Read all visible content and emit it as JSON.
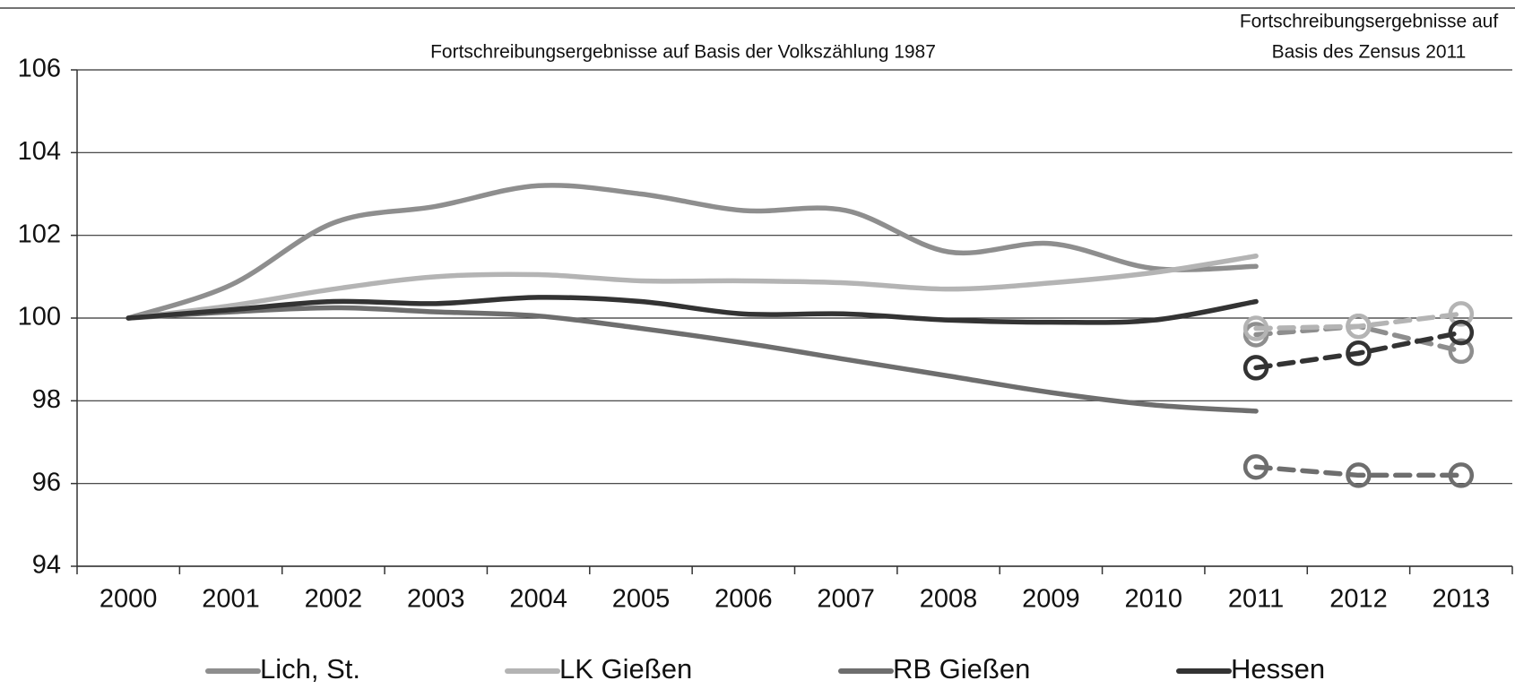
{
  "chart_data": {
    "type": "line",
    "annotations": [
      "Fortschreibungsergebnisse auf Basis der Volkszählung 1987",
      "Fortschreibungsergebnisse auf",
      "Basis des Zensus 2011"
    ],
    "categories": [
      "2000",
      "2001",
      "2002",
      "2003",
      "2004",
      "2005",
      "2006",
      "2007",
      "2008",
      "2009",
      "2010",
      "2011",
      "2012",
      "2013"
    ],
    "series": [
      {
        "name": "Lich, St.",
        "color": "#8e8e8e",
        "values": [
          100,
          100.8,
          102.3,
          102.7,
          103.2,
          103.0,
          102.6,
          102.6,
          101.6,
          101.8,
          101.2,
          101.25,
          null,
          null
        ],
        "zensus_values": [
          null,
          null,
          null,
          null,
          null,
          null,
          null,
          null,
          null,
          null,
          null,
          99.6,
          99.8,
          99.2
        ]
      },
      {
        "name": "LK Gießen",
        "color": "#b4b4b4",
        "values": [
          100,
          100.3,
          100.7,
          101.0,
          101.05,
          100.9,
          100.9,
          100.85,
          100.7,
          100.85,
          101.1,
          101.5,
          null,
          null
        ],
        "zensus_values": [
          null,
          null,
          null,
          null,
          null,
          null,
          null,
          null,
          null,
          null,
          null,
          99.75,
          99.8,
          100.1
        ]
      },
      {
        "name": "RB Gießen",
        "color": "#6e6e6e",
        "values": [
          100,
          100.15,
          100.25,
          100.15,
          100.05,
          99.75,
          99.4,
          99.0,
          98.6,
          98.2,
          97.9,
          97.75,
          null,
          null
        ],
        "zensus_values": [
          null,
          null,
          null,
          null,
          null,
          null,
          null,
          null,
          null,
          null,
          null,
          96.4,
          96.2,
          96.2
        ]
      },
      {
        "name": "Hessen",
        "color": "#333333",
        "values": [
          100,
          100.2,
          100.4,
          100.35,
          100.5,
          100.4,
          100.1,
          100.1,
          99.95,
          99.9,
          99.95,
          100.4,
          null,
          null
        ],
        "zensus_values": [
          null,
          null,
          null,
          null,
          null,
          null,
          null,
          null,
          null,
          null,
          null,
          98.8,
          99.15,
          99.65
        ]
      }
    ],
    "ylim": [
      94,
      106
    ],
    "yticks": [
      94,
      96,
      98,
      100,
      102,
      104,
      106
    ],
    "grid": true,
    "legend": "bottom"
  }
}
